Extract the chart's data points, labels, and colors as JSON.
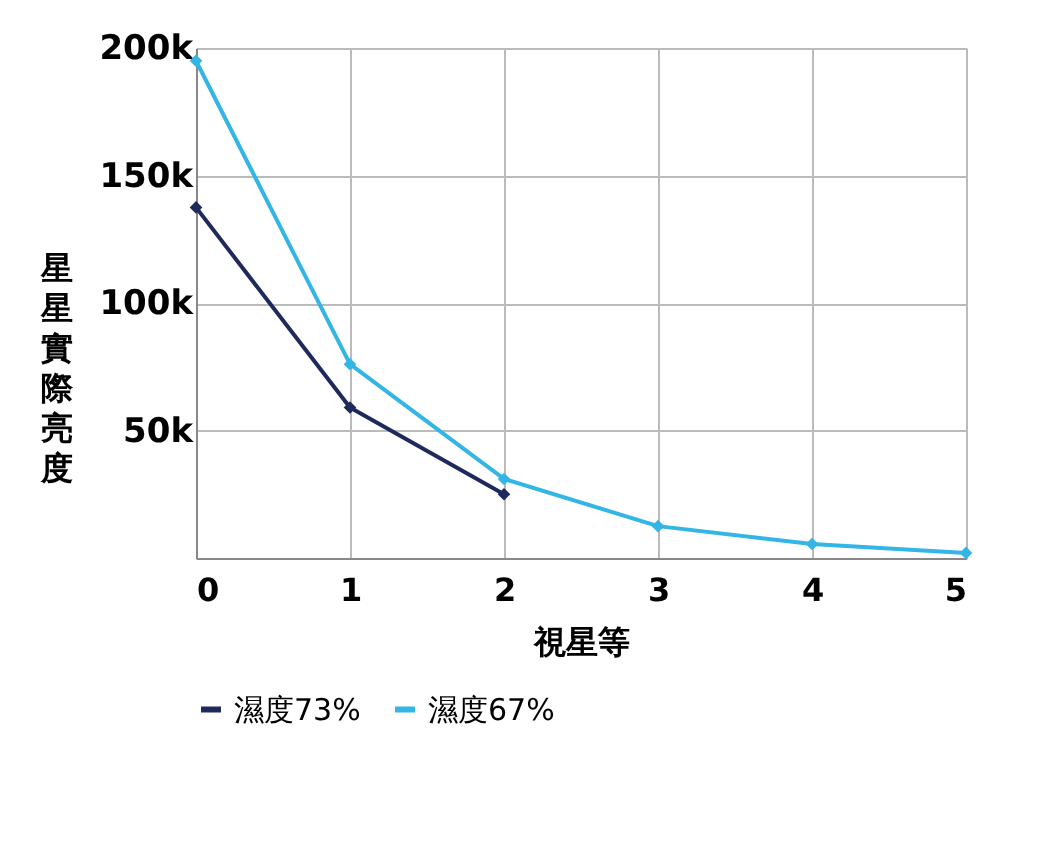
{
  "chart_data": {
    "type": "line",
    "xlabel": "視星等",
    "ylabel": "星星實際亮度",
    "x": [
      0,
      1,
      2,
      3,
      4,
      5
    ],
    "series": [
      {
        "name": "濕度73%",
        "color": "#1f2a5c",
        "values": [
          137500,
          59000,
          25000,
          null,
          null,
          null
        ]
      },
      {
        "name": "濕度67%",
        "color": "#33b5e5",
        "values": [
          195000,
          76000,
          31000,
          12500,
          5500,
          2000
        ]
      }
    ],
    "xlim": [
      0,
      5
    ],
    "xticks": [
      0,
      1,
      2,
      3,
      4,
      5
    ],
    "ylim": [
      0,
      200000
    ],
    "yticks": [
      {
        "value": 0,
        "label": null
      },
      {
        "value": 50000,
        "label": "50k"
      },
      {
        "value": 100000,
        "label": "100k"
      },
      {
        "value": 150000,
        "label": "150k"
      },
      {
        "value": 200000,
        "label": "200k"
      }
    ],
    "grid": true,
    "legend": "bottom",
    "marker": "diamond",
    "line_style": "solid"
  }
}
